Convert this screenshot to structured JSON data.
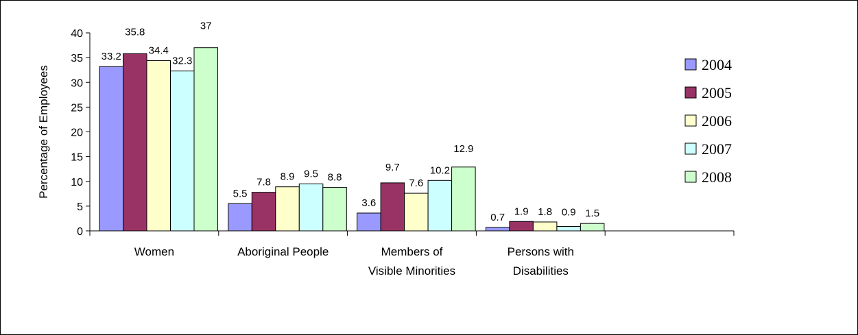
{
  "chart_data": {
    "type": "bar",
    "ylabel": "Percentage of Employees",
    "ylim": [
      0,
      40
    ],
    "yticks": [
      0,
      5,
      10,
      15,
      20,
      25,
      30,
      35,
      40
    ],
    "categories": [
      [
        "Women"
      ],
      [
        "Aboriginal People"
      ],
      [
        "Members of",
        "Visible Minorities"
      ],
      [
        "Persons with",
        "Disabilities"
      ],
      [
        ""
      ]
    ],
    "series": [
      {
        "name": "2004",
        "color": "#9999ff",
        "values": [
          33.2,
          5.5,
          3.6,
          0.7,
          null
        ]
      },
      {
        "name": "2005",
        "color": "#993366",
        "values": [
          35.8,
          7.8,
          9.7,
          1.9,
          null
        ]
      },
      {
        "name": "2006",
        "color": "#ffffcc",
        "values": [
          34.4,
          8.9,
          7.6,
          1.8,
          null
        ]
      },
      {
        "name": "2007",
        "color": "#ccffff",
        "values": [
          32.3,
          9.5,
          10.2,
          0.9,
          null
        ]
      },
      {
        "name": "2008",
        "color": "#ccffcc",
        "values": [
          37,
          8.8,
          12.9,
          1.5,
          null
        ]
      }
    ],
    "legend_position": "right",
    "grid": false
  }
}
